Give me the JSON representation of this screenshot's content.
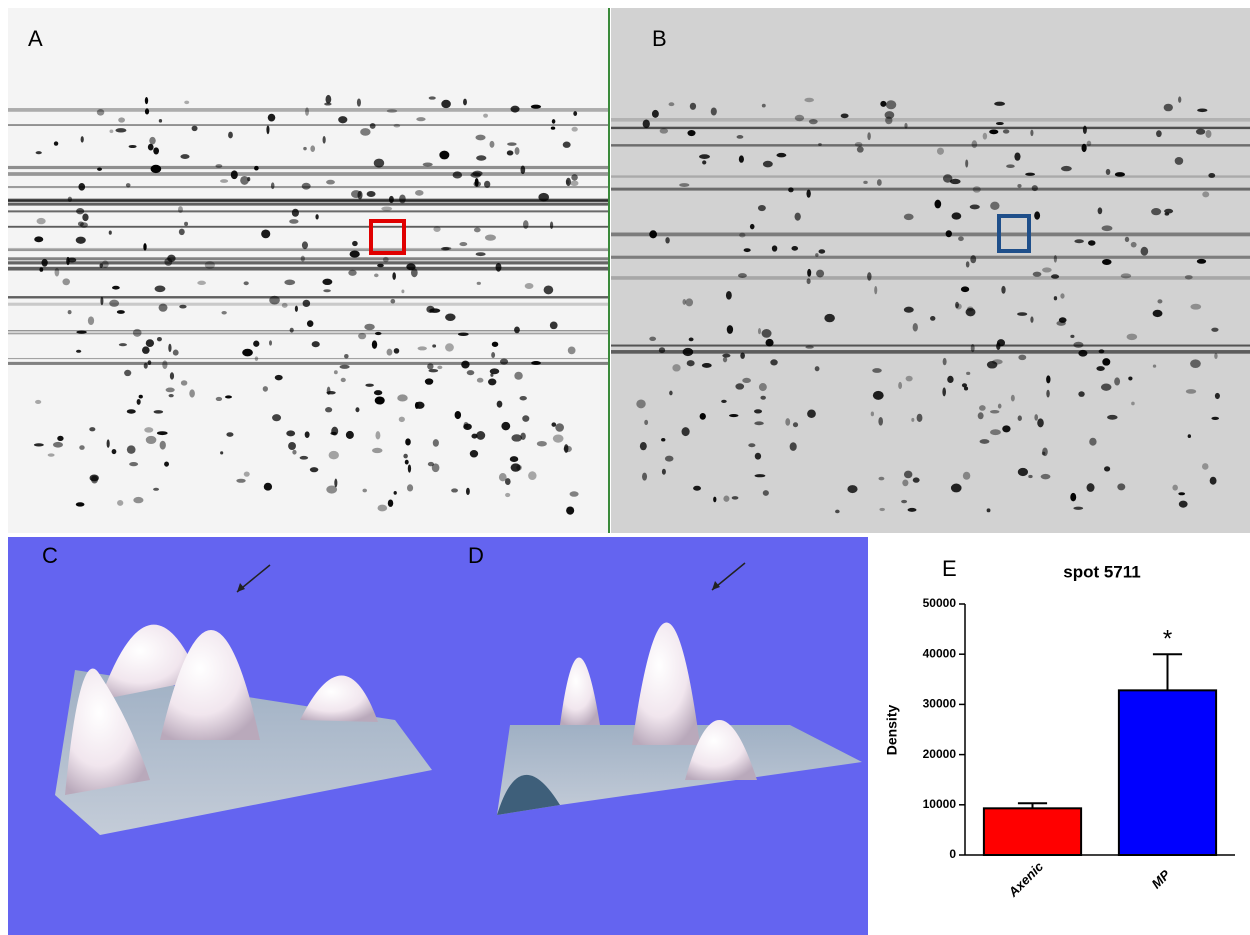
{
  "panel_labels": [
    "A",
    "B",
    "C",
    "D"
  ],
  "chart_data": {
    "type": "bar",
    "label": "E",
    "title": "spot 5711",
    "y_label": "Density",
    "categories": [
      "Axenic",
      "MP"
    ],
    "values": [
      9300,
      32800
    ],
    "errors": [
      1000,
      7200
    ],
    "colors": [
      "#ff0000",
      "#0000ff"
    ],
    "annotations": [
      null,
      "*"
    ],
    "ylim": [
      0,
      50000
    ],
    "yticks": [
      0,
      10000,
      20000,
      30000,
      40000,
      50000
    ]
  }
}
